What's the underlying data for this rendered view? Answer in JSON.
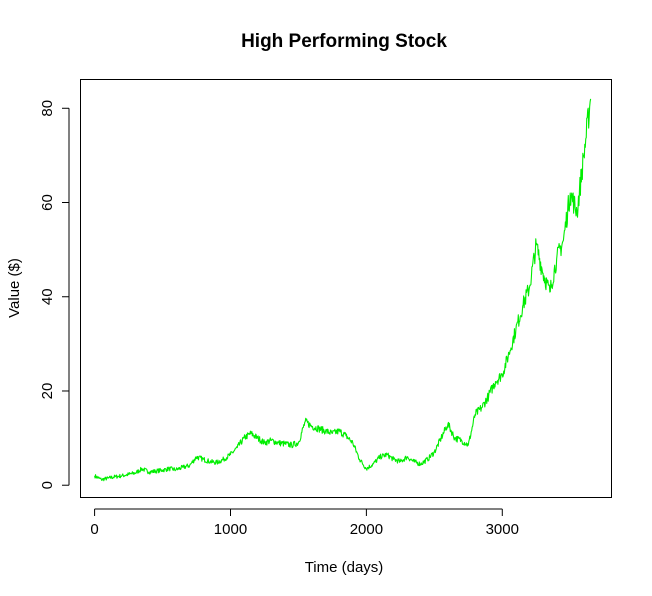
{
  "chart_data": {
    "type": "line",
    "title": "High Performing Stock",
    "xlabel": "Time (days)",
    "ylabel": "Value ($)",
    "xlim": [
      -100,
      3800
    ],
    "ylim": [
      -2.5,
      86
    ],
    "x_ticks": [
      0,
      1000,
      2000,
      3000
    ],
    "y_ticks": [
      0,
      20,
      40,
      60,
      80
    ],
    "grid": false,
    "legend": "none",
    "series": [
      {
        "color": "#00ee00",
        "x": [
          0,
          50,
          100,
          150,
          200,
          250,
          300,
          350,
          400,
          450,
          500,
          550,
          600,
          650,
          700,
          750,
          800,
          850,
          900,
          950,
          1000,
          1050,
          1100,
          1150,
          1200,
          1250,
          1300,
          1350,
          1400,
          1450,
          1500,
          1550,
          1600,
          1650,
          1700,
          1750,
          1800,
          1850,
          1900,
          1950,
          2000,
          2050,
          2100,
          2150,
          2200,
          2250,
          2300,
          2350,
          2400,
          2450,
          2500,
          2550,
          2600,
          2650,
          2700,
          2750,
          2800,
          2850,
          2900,
          2950,
          3000,
          3050,
          3100,
          3150,
          3200,
          3250,
          3300,
          3350,
          3400,
          3450,
          3500,
          3550,
          3600,
          3650
        ],
        "values": [
          2.0,
          1.2,
          1.5,
          1.8,
          2.0,
          2.3,
          2.6,
          3.5,
          2.8,
          3.0,
          3.2,
          3.5,
          3.3,
          3.8,
          4.2,
          6.0,
          5.5,
          5.0,
          4.8,
          5.5,
          6.5,
          8.0,
          10.0,
          11.0,
          10.0,
          9.0,
          9.5,
          9.0,
          8.8,
          8.5,
          9.0,
          13.5,
          12.5,
          12.0,
          11.5,
          11.0,
          11.5,
          10.5,
          9.0,
          5.5,
          3.5,
          4.5,
          6.0,
          6.5,
          5.5,
          5.0,
          6.0,
          5.0,
          4.5,
          5.5,
          7.0,
          10.0,
          13.0,
          10.0,
          9.5,
          8.5,
          15.0,
          16.5,
          19.0,
          22.0,
          23.5,
          28.0,
          33.0,
          38.0,
          42.0,
          51.0,
          45.0,
          41.0,
          48.0,
          52.0,
          62.0,
          58.0,
          70.0,
          82.0
        ]
      }
    ]
  }
}
